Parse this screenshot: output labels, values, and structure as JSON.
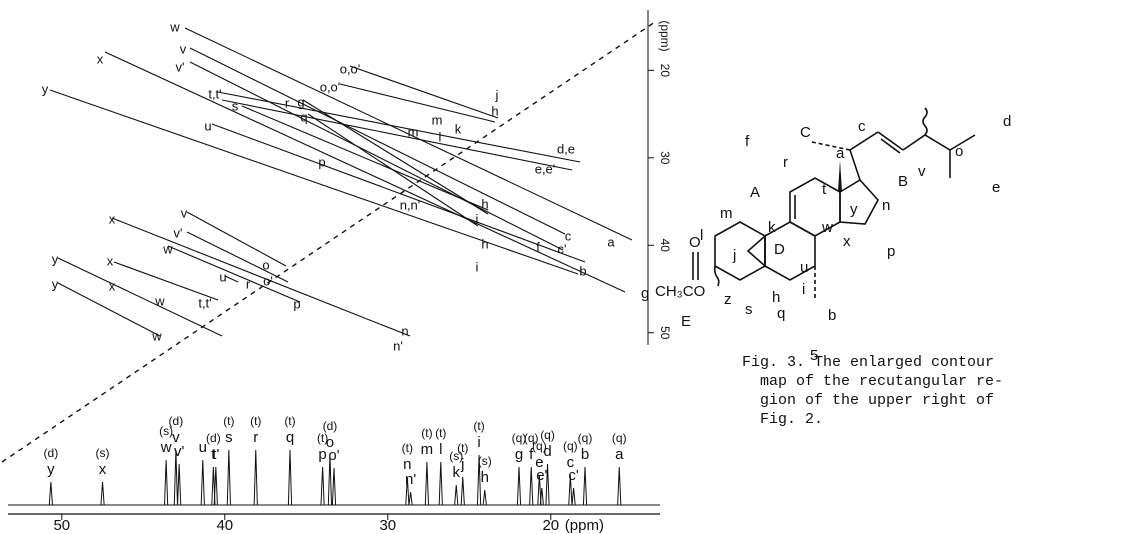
{
  "spectrum": {
    "xlim": [
      53.3,
      13.3
    ],
    "xticks": [
      50,
      40,
      30,
      20
    ],
    "x_unit": "(ppm)",
    "peaks": [
      {
        "label": "y",
        "mult": "(d)",
        "ppm": 50.67
      },
      {
        "label": "x",
        "mult": "(s)",
        "ppm": 47.5
      },
      {
        "label": "w",
        "mult": "(s)",
        "ppm": 43.6
      },
      {
        "label": "v",
        "mult": "(d)",
        "ppm": 43.0
      },
      {
        "label": "v'",
        "ppm": 42.8
      },
      {
        "label": "u",
        "ppm": 41.35
      },
      {
        "label": "t",
        "mult": "(d)",
        "ppm": 40.7
      },
      {
        "label": "t'",
        "ppm": 40.55
      },
      {
        "label": "s",
        "mult": "(t)",
        "ppm": 39.75
      },
      {
        "label": "r",
        "mult": "(t)",
        "ppm": 38.1
      },
      {
        "label": "q",
        "mult": "(t)",
        "ppm": 36.0
      },
      {
        "label": "p",
        "mult": "(t)",
        "ppm": 34.0
      },
      {
        "label": "o",
        "mult": "(d)",
        "ppm": 33.55
      },
      {
        "label": "o'",
        "ppm": 33.3
      },
      {
        "label": "n",
        "mult": "(t)",
        "ppm": 28.8
      },
      {
        "label": "n'",
        "ppm": 28.6
      },
      {
        "label": "m",
        "mult": "(t)",
        "ppm": 27.6
      },
      {
        "label": "l",
        "mult": "(t)",
        "ppm": 26.75
      },
      {
        "label": "k",
        "mult": "(s)",
        "ppm": 25.8
      },
      {
        "label": "j",
        "mult": "(t)",
        "ppm": 25.4
      },
      {
        "label": "i",
        "mult": "(t)",
        "ppm": 24.4
      },
      {
        "label": "h",
        "mult": "(s)",
        "ppm": 24.05
      },
      {
        "label": "g",
        "mult": "(q)",
        "ppm": 21.95
      },
      {
        "label": "f",
        "mult": "(q)",
        "ppm": 21.2
      },
      {
        "label": "e",
        "mult": "(q)",
        "ppm": 20.7
      },
      {
        "label": "e'",
        "ppm": 20.55
      },
      {
        "label": "d",
        "mult": "(q)",
        "ppm": 20.2
      },
      {
        "label": "c",
        "mult": "(q)",
        "ppm": 18.8
      },
      {
        "label": "c'",
        "ppm": 18.6
      },
      {
        "label": "b",
        "mult": "(q)",
        "ppm": 17.9
      },
      {
        "label": "a",
        "mult": "(q)",
        "ppm": 15.8
      }
    ]
  },
  "contour_map": {
    "ylim": [
      13.1,
      51.4
    ],
    "yticks": [
      20,
      30,
      40,
      50
    ],
    "y_unit": "(ppm)",
    "labels": [
      "w",
      "v",
      "v'",
      "x",
      "o,o'",
      "o,o'",
      "t,t'",
      "s",
      "r",
      "g",
      "q",
      "u",
      "j",
      "h",
      "m",
      "k",
      "l",
      "m",
      "y",
      "p",
      "d,e",
      "e,e'",
      "h",
      "n,n'",
      "i",
      "x",
      "v",
      "v'",
      "w",
      "h",
      "f",
      "c",
      "c'",
      "a",
      "i",
      "o",
      "o'",
      "r",
      "b",
      "p",
      "y",
      "x",
      "u",
      "y",
      "x",
      "w",
      "t,t'",
      "w",
      "n",
      "n'"
    ]
  },
  "structure": {
    "labels": [
      "f",
      "C",
      "c",
      "d",
      "a",
      "o",
      "r",
      "v",
      "B",
      "e",
      "t",
      "A",
      "y",
      "n",
      "w",
      "x",
      "m",
      "k",
      "l",
      "j",
      "D",
      "u",
      "p",
      "O",
      "g",
      "CH₃CO",
      "z",
      "h",
      "i",
      "b",
      "s",
      "q",
      "E"
    ],
    "compound_number": "5"
  },
  "caption": {
    "lines": [
      "Fig. 3.  The enlarged contour",
      "map of the recutangular re-",
      "gion of the upper right of",
      "Fig. 2."
    ]
  }
}
